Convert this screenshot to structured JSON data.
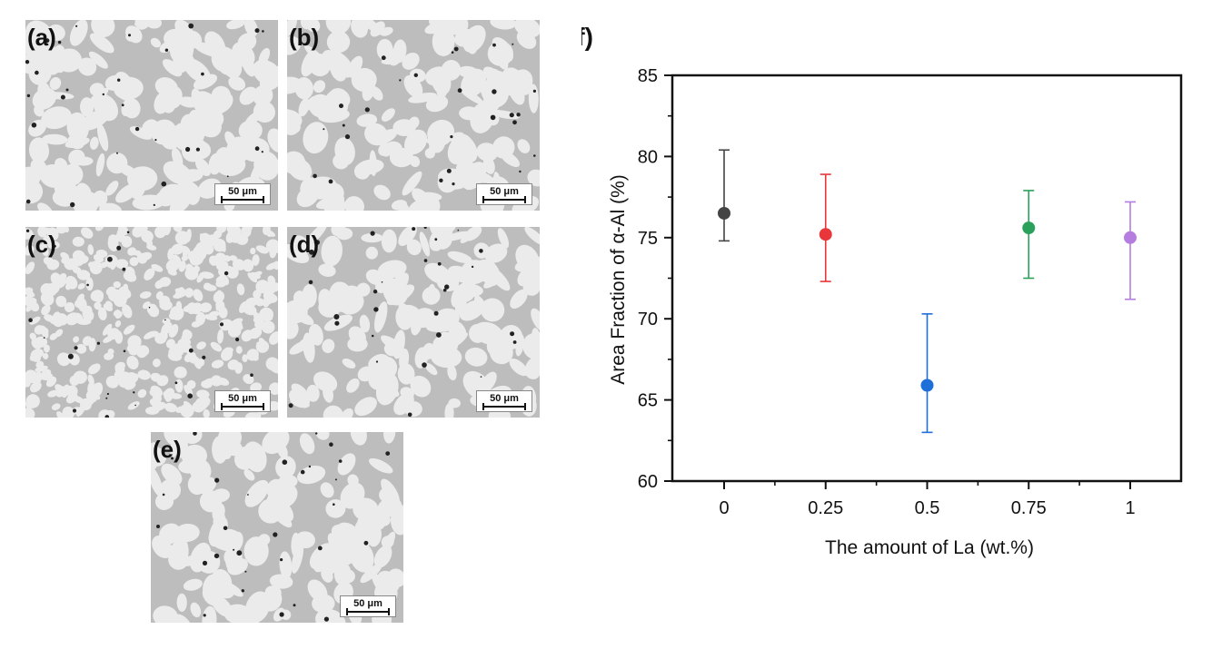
{
  "panels": [
    {
      "id": "a",
      "label": "(a)",
      "scale_label": "50 μm"
    },
    {
      "id": "b",
      "label": "(b)",
      "scale_label": "50 μm"
    },
    {
      "id": "c",
      "label": "(c)",
      "scale_label": "50 μm"
    },
    {
      "id": "d",
      "label": "(d)",
      "scale_label": "50 μm"
    },
    {
      "id": "e",
      "label": "(e)",
      "scale_label": "50 μm"
    }
  ],
  "chart_data": {
    "type": "scatter",
    "panel_label": "(f)",
    "title": "",
    "xlabel": "The amount of La (wt.%)",
    "ylabel": "Area Fraction of α-Al (%)",
    "ylim": [
      60,
      85
    ],
    "yticks": [
      60,
      65,
      70,
      75,
      80,
      85
    ],
    "categories": [
      "0",
      "0.25",
      "0.5",
      "0.75",
      "1"
    ],
    "values": [
      76.5,
      75.2,
      65.9,
      75.6,
      75.0
    ],
    "error_low": [
      74.8,
      72.3,
      63.0,
      72.5,
      71.2
    ],
    "error_high": [
      80.4,
      78.9,
      70.3,
      77.9,
      77.2
    ],
    "colors": [
      "#444444",
      "#e8363a",
      "#1f6fd8",
      "#2aa15a",
      "#b57de0"
    ],
    "grid": false,
    "legend": "none"
  }
}
